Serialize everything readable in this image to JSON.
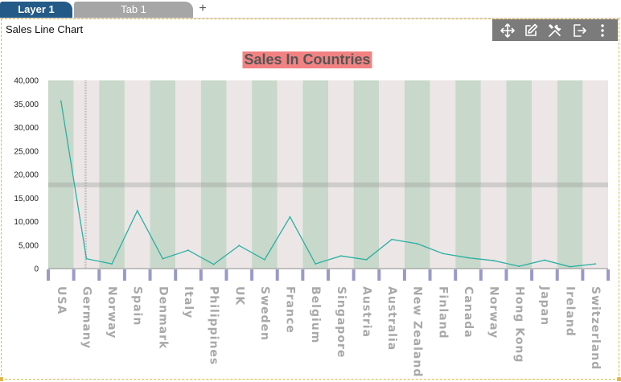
{
  "tabs": [
    {
      "label": "Layer 1",
      "active": true
    },
    {
      "label": "Tab 1",
      "active": false
    }
  ],
  "add_tab_symbol": "+",
  "widget": {
    "title": "Sales Line Chart",
    "toolbar": [
      "move-icon",
      "edit-icon",
      "tools-icon",
      "export-icon",
      "more-icon"
    ]
  },
  "chart_data": {
    "type": "line",
    "title": "Sales In Countries",
    "xlabel": "",
    "ylabel": "",
    "ylim": [
      0,
      40000
    ],
    "yticks": [
      "0",
      "5,000",
      "10,000",
      "15,000",
      "20,000",
      "25,000",
      "30,000",
      "35,000",
      "40,000"
    ],
    "ytick_values": [
      0,
      5000,
      10000,
      15000,
      20000,
      25000,
      30000,
      35000,
      40000
    ],
    "reference_line_y": 17800,
    "grid": false,
    "categories": [
      "USA",
      "Germany",
      "Norway",
      "Spain",
      "Denmark",
      "Italy",
      "Philippines",
      "UK",
      "Sweden",
      "France",
      "Belgium",
      "Singapore",
      "Austria",
      "Australia",
      "New Zealand",
      "Finland",
      "Canada",
      "Norway",
      "Hong Kong",
      "Japan",
      "Ireland",
      "Switzerland"
    ],
    "series": [
      {
        "values": [
          35600,
          2100,
          1000,
          12300,
          2100,
          3900,
          900,
          4900,
          1900,
          11000,
          1000,
          2700,
          1900,
          6200,
          5300,
          3200,
          2300,
          1700,
          500,
          1800,
          400,
          1000
        ]
      }
    ],
    "colors": {
      "line": "#2ab0a3",
      "band_green": "#c8d8ca",
      "band_gray": "#ece6e6",
      "title_bg": "#f28282",
      "title_text": "#555555",
      "tick_marks": "#9a9ac9"
    }
  }
}
